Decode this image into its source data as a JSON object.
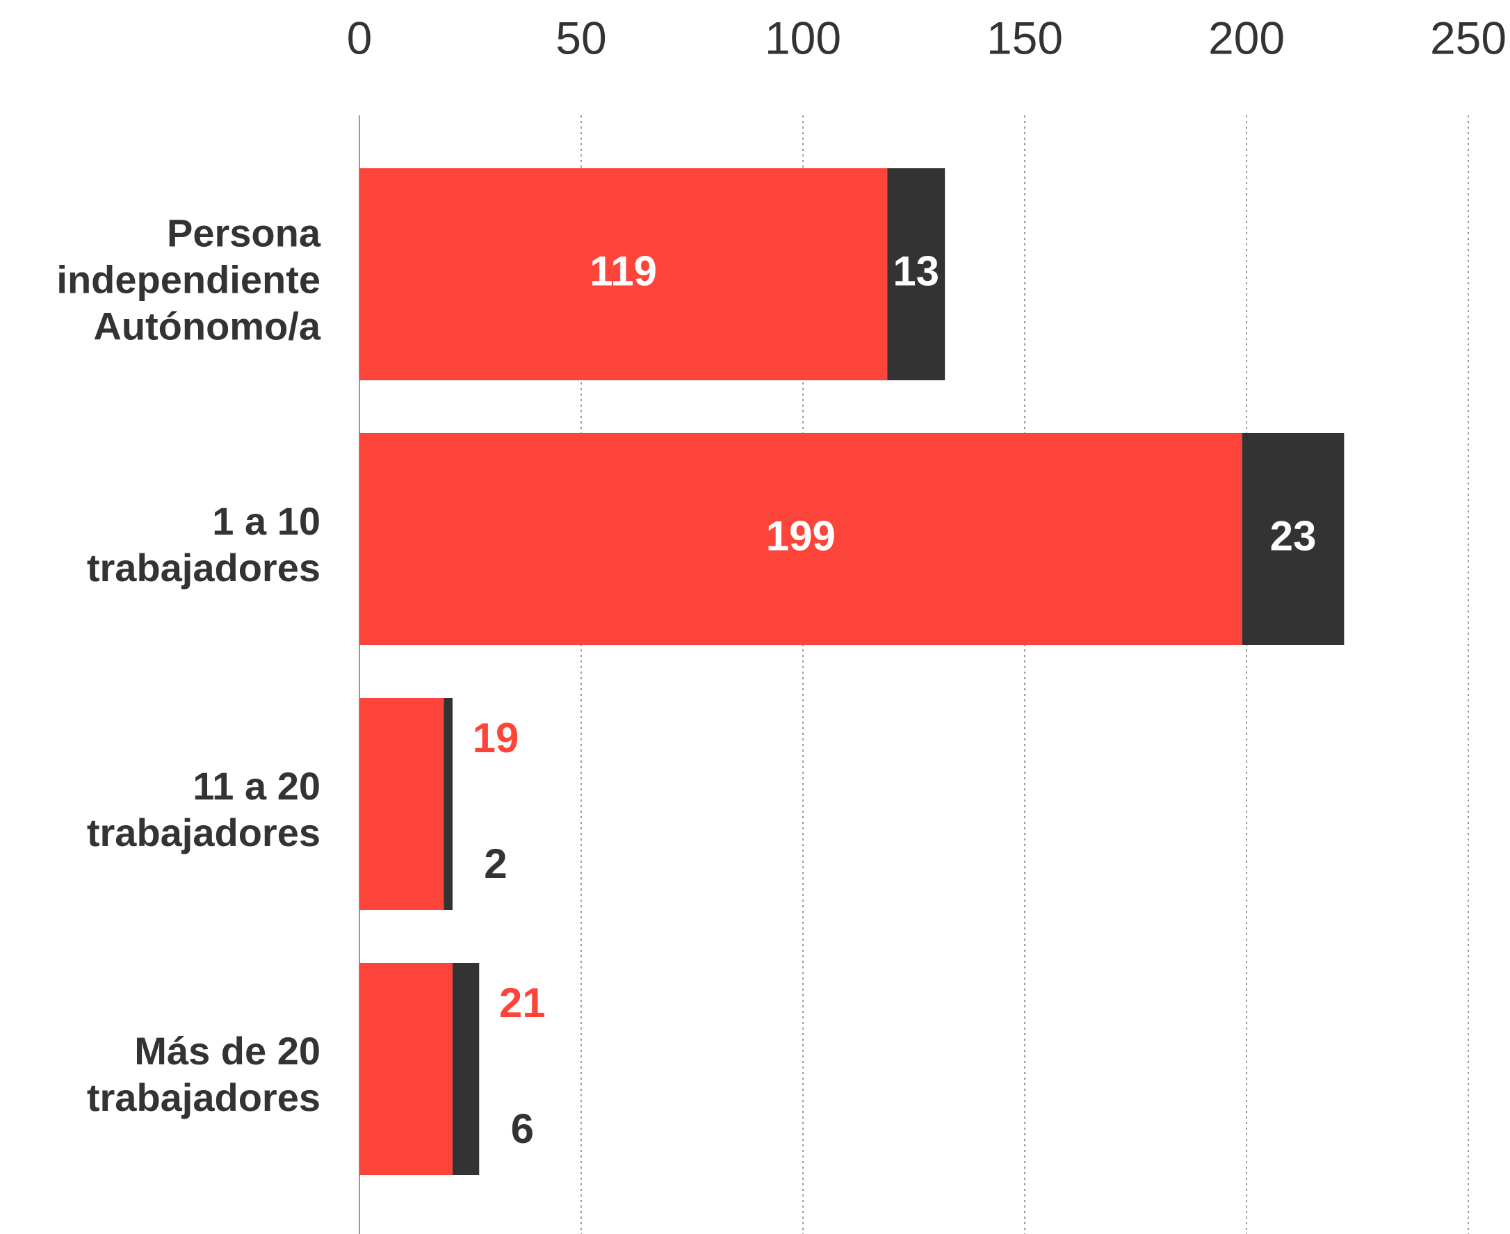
{
  "chart_data": {
    "type": "stacked-bar-horizontal",
    "categories": [
      [
        "Persona",
        "independiente",
        "Autónomo/a"
      ],
      [
        "1 a 10",
        "trabajadores"
      ],
      [
        "11 a 20",
        "trabajadores"
      ],
      [
        "Más de 20",
        "trabajadores"
      ]
    ],
    "series": [
      {
        "color": "#fd443b",
        "values": [
          119,
          199,
          19,
          21
        ]
      },
      {
        "color": "#333333",
        "values": [
          13,
          23,
          2,
          6
        ]
      }
    ],
    "xlim": [
      0,
      250
    ],
    "xticks": [
      0,
      50,
      100,
      150,
      200,
      250
    ],
    "grid": true
  }
}
